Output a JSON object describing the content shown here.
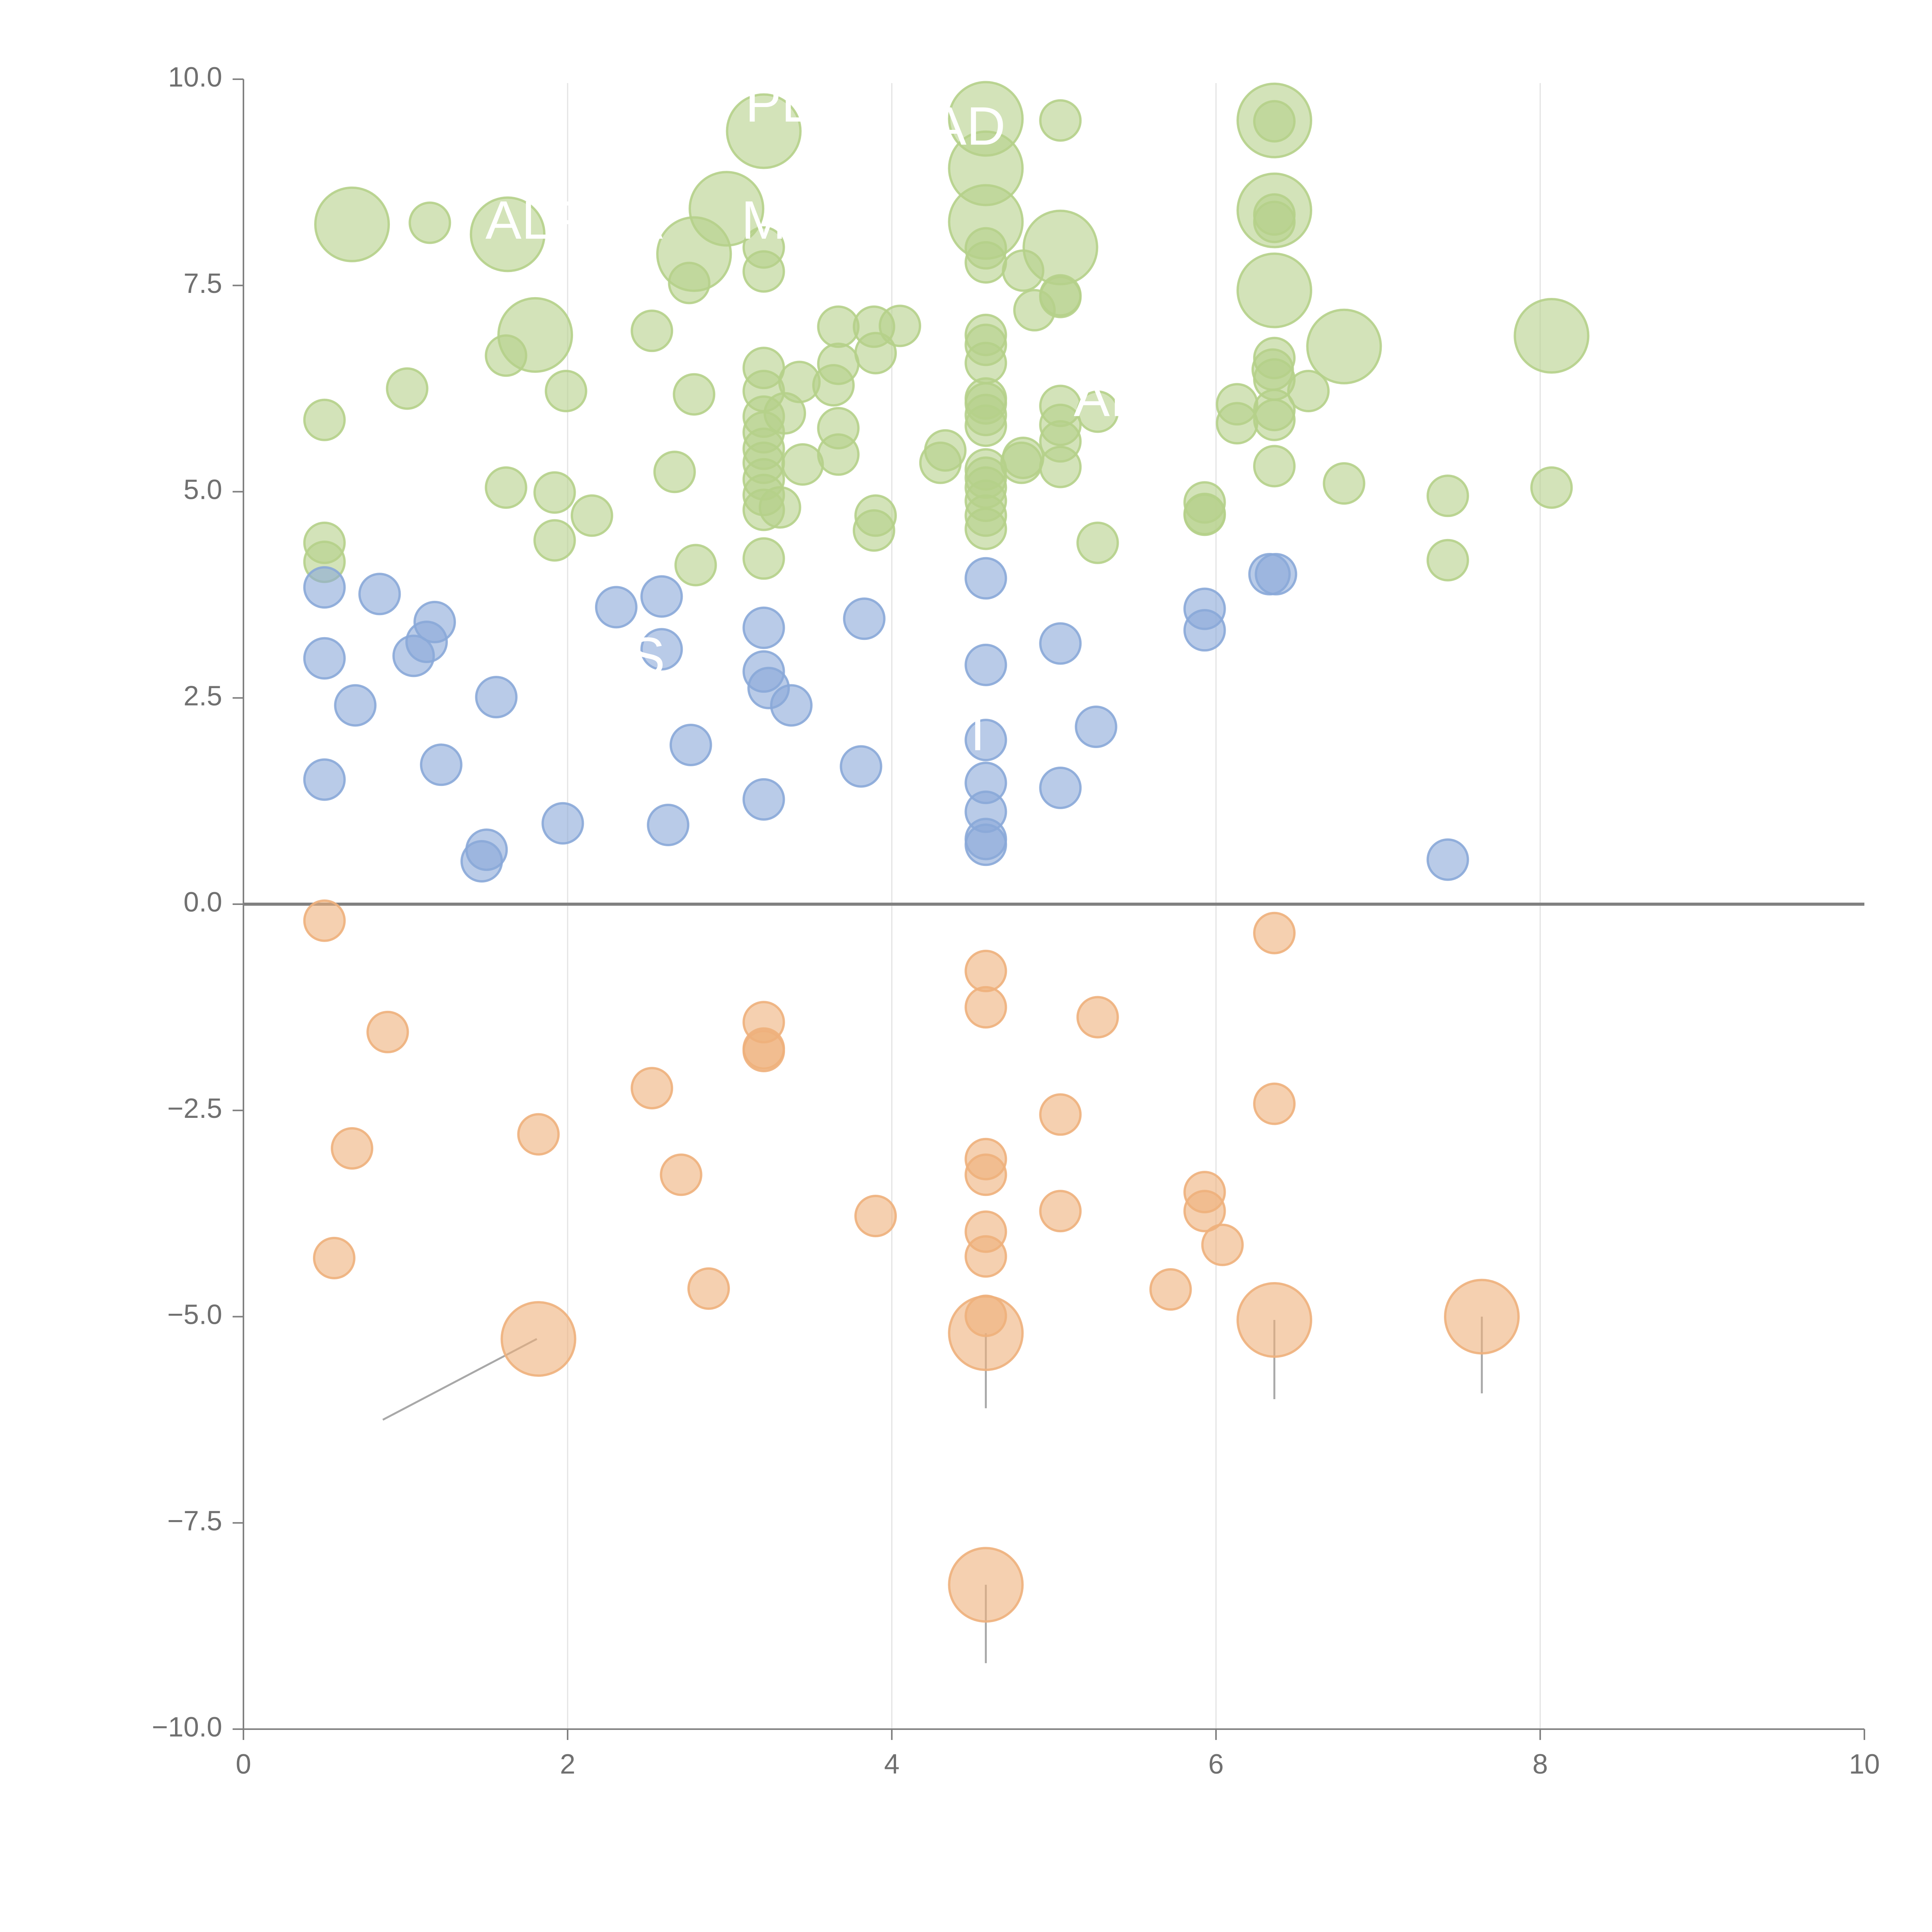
{
  "chart_data": {
    "type": "scatter",
    "title": "",
    "xlabel": "",
    "ylabel": "",
    "xlim": [
      0,
      10
    ],
    "ylim": [
      -10,
      10
    ],
    "grid": "vertical",
    "zero_line": true,
    "colors": {
      "green": "#b5d08a",
      "blue": "#8aa9d8",
      "orange": "#eeb07c",
      "axis": "#808080",
      "grid": "#e3e3e3",
      "leader": "#a8a8a8"
    },
    "xticks": [
      {
        "value": 0,
        "label": "0"
      },
      {
        "value": 2,
        "label": "2"
      },
      {
        "value": 4,
        "label": "4"
      },
      {
        "value": 6,
        "label": "6"
      },
      {
        "value": 8,
        "label": "8"
      },
      {
        "value": 10,
        "label": "10"
      }
    ],
    "yticks": [
      {
        "value": 10,
        "label": "10.0"
      },
      {
        "value": 7.5,
        "label": "7.5"
      },
      {
        "value": 5,
        "label": "5.0"
      },
      {
        "value": 2.5,
        "label": "2.5"
      },
      {
        "value": 0,
        "label": "0.0"
      },
      {
        "value": -2.5,
        "label": "−2.5"
      },
      {
        "value": -5,
        "label": "−5.0"
      },
      {
        "value": -7.5,
        "label": "−7.5"
      },
      {
        "value": -10,
        "label": "−10.0"
      }
    ],
    "series": [
      {
        "name": "green",
        "color": "green",
        "points": [
          [
            0.5,
            5.87,
            1
          ],
          [
            0.5,
            4.38,
            1
          ],
          [
            0.5,
            4.15,
            1
          ],
          [
            0.67,
            8.24,
            2.1
          ],
          [
            1.01,
            6.25,
            1
          ],
          [
            1.15,
            8.26,
            1
          ],
          [
            1.63,
            8.12,
            2.1
          ],
          [
            1.62,
            6.65,
            1
          ],
          [
            1.62,
            5.05,
            1
          ],
          [
            1.8,
            6.9,
            2.1
          ],
          [
            1.92,
            4.99,
            1
          ],
          [
            1.92,
            4.41,
            1
          ],
          [
            1.99,
            6.22,
            1
          ],
          [
            2.15,
            4.71,
            1
          ],
          [
            2.52,
            6.95,
            1
          ],
          [
            2.66,
            5.24,
            1
          ],
          [
            2.75,
            7.53,
            1
          ],
          [
            2.78,
            6.18,
            1
          ],
          [
            2.79,
            4.11,
            1
          ],
          [
            2.78,
            7.88,
            2.1
          ],
          [
            2.98,
            8.43,
            2.1
          ],
          [
            3.21,
            9.37,
            2.1
          ],
          [
            3.21,
            7.96,
            1
          ],
          [
            3.21,
            7.67,
            1
          ],
          [
            3.21,
            6.5,
            1
          ],
          [
            3.21,
            6.22,
            1
          ],
          [
            3.21,
            5.91,
            1
          ],
          [
            3.21,
            5.72,
            1
          ],
          [
            3.21,
            5.52,
            1
          ],
          [
            3.21,
            5.35,
            1
          ],
          [
            3.21,
            5.15,
            1
          ],
          [
            3.21,
            4.96,
            1
          ],
          [
            3.21,
            4.78,
            1
          ],
          [
            3.21,
            4.19,
            1
          ],
          [
            3.31,
            4.81,
            1
          ],
          [
            3.34,
            5.95,
            1
          ],
          [
            3.43,
            6.33,
            1
          ],
          [
            3.45,
            5.33,
            1
          ],
          [
            3.64,
            6.29,
            1
          ],
          [
            3.67,
            7.0,
            1
          ],
          [
            3.67,
            6.55,
            1
          ],
          [
            3.67,
            5.77,
            1
          ],
          [
            3.67,
            5.45,
            1
          ],
          [
            3.89,
            7.0,
            1
          ],
          [
            3.9,
            6.68,
            1
          ],
          [
            3.9,
            4.71,
            1
          ],
          [
            3.89,
            4.53,
            1
          ],
          [
            4.05,
            7.01,
            1
          ],
          [
            4.3,
            5.35,
            1
          ],
          [
            4.33,
            5.5,
            1
          ],
          [
            4.58,
            9.52,
            2.1
          ],
          [
            4.58,
            8.92,
            2.1
          ],
          [
            4.58,
            8.27,
            2.1
          ],
          [
            4.58,
            7.95,
            1
          ],
          [
            4.58,
            7.78,
            1
          ],
          [
            4.58,
            6.9,
            1
          ],
          [
            4.58,
            6.78,
            1
          ],
          [
            4.58,
            6.56,
            1
          ],
          [
            4.58,
            6.13,
            1
          ],
          [
            4.58,
            6.07,
            1
          ],
          [
            4.58,
            5.93,
            1
          ],
          [
            4.58,
            5.8,
            1
          ],
          [
            4.58,
            5.27,
            1
          ],
          [
            4.58,
            5.17,
            1
          ],
          [
            4.58,
            5.05,
            1
          ],
          [
            4.58,
            4.89,
            1
          ],
          [
            4.58,
            4.71,
            1
          ],
          [
            4.58,
            4.55,
            1
          ],
          [
            4.81,
            7.68,
            1
          ],
          [
            4.81,
            5.41,
            1
          ],
          [
            4.8,
            5.35,
            1
          ],
          [
            4.88,
            7.2,
            1
          ],
          [
            5.04,
            9.5,
            1
          ],
          [
            5.04,
            7.96,
            2.1
          ],
          [
            5.04,
            7.36,
            1
          ],
          [
            5.04,
            7.38,
            1
          ],
          [
            5.04,
            6.04,
            1
          ],
          [
            5.04,
            5.81,
            1
          ],
          [
            5.04,
            5.61,
            1
          ],
          [
            5.04,
            5.3,
            1
          ],
          [
            5.27,
            5.97,
            1
          ],
          [
            5.27,
            4.38,
            1
          ],
          [
            5.93,
            4.87,
            1
          ],
          [
            5.93,
            4.73,
            1
          ],
          [
            5.93,
            4.72,
            1
          ],
          [
            6.13,
            6.06,
            1
          ],
          [
            6.13,
            5.83,
            1
          ],
          [
            6.35,
            6.48,
            1
          ],
          [
            6.36,
            9.5,
            2.1
          ],
          [
            6.36,
            9.49,
            1
          ],
          [
            6.36,
            8.41,
            2.1
          ],
          [
            6.36,
            8.36,
            1
          ],
          [
            6.36,
            8.27,
            1
          ],
          [
            6.36,
            7.44,
            2.1
          ],
          [
            6.36,
            6.62,
            1
          ],
          [
            6.36,
            6.36,
            1
          ],
          [
            6.36,
            5.99,
            1
          ],
          [
            6.36,
            5.87,
            1
          ],
          [
            6.36,
            5.31,
            1
          ],
          [
            6.57,
            6.22,
            1
          ],
          [
            6.79,
            6.76,
            2.1
          ],
          [
            6.79,
            5.1,
            1
          ],
          [
            7.43,
            4.95,
            1
          ],
          [
            7.43,
            4.17,
            1
          ],
          [
            8.07,
            6.89,
            2.1
          ],
          [
            8.07,
            5.05,
            1
          ]
        ]
      },
      {
        "name": "blue",
        "color": "blue",
        "points": [
          [
            0.5,
            3.84,
            1
          ],
          [
            0.5,
            2.98,
            1
          ],
          [
            0.5,
            1.51,
            1
          ],
          [
            0.69,
            2.41,
            1
          ],
          [
            0.84,
            3.76,
            1
          ],
          [
            1.05,
            3.01,
            1
          ],
          [
            1.13,
            3.18,
            1
          ],
          [
            1.18,
            3.42,
            1
          ],
          [
            1.22,
            1.69,
            1
          ],
          [
            1.47,
            0.52,
            1
          ],
          [
            1.5,
            0.66,
            1
          ],
          [
            1.56,
            2.51,
            1
          ],
          [
            1.97,
            0.98,
            1
          ],
          [
            2.3,
            3.6,
            1
          ],
          [
            2.58,
            3.73,
            1
          ],
          [
            2.58,
            3.09,
            1
          ],
          [
            2.62,
            0.96,
            1
          ],
          [
            2.76,
            1.93,
            1
          ],
          [
            3.21,
            3.35,
            1
          ],
          [
            3.21,
            2.82,
            1
          ],
          [
            3.21,
            1.27,
            1
          ],
          [
            3.24,
            2.62,
            1
          ],
          [
            3.38,
            2.41,
            1
          ],
          [
            3.81,
            1.67,
            1
          ],
          [
            3.83,
            3.46,
            1
          ],
          [
            4.58,
            3.95,
            1
          ],
          [
            4.58,
            2.9,
            1
          ],
          [
            4.58,
            1.99,
            1
          ],
          [
            4.58,
            1.47,
            1
          ],
          [
            4.58,
            1.12,
            1
          ],
          [
            4.58,
            0.79,
            1
          ],
          [
            4.58,
            0.72,
            1
          ],
          [
            5.04,
            3.16,
            1
          ],
          [
            5.04,
            1.41,
            1
          ],
          [
            5.26,
            2.15,
            1
          ],
          [
            5.93,
            3.58,
            1
          ],
          [
            5.93,
            3.32,
            1
          ],
          [
            6.33,
            4.0,
            1
          ],
          [
            6.37,
            4.0,
            1
          ],
          [
            7.43,
            0.54,
            1
          ]
        ]
      },
      {
        "name": "orange",
        "color": "orange",
        "points": [
          [
            0.5,
            -0.2,
            1
          ],
          [
            0.56,
            -4.29,
            1
          ],
          [
            0.67,
            -2.96,
            1
          ],
          [
            0.89,
            -1.55,
            1
          ],
          [
            1.82,
            -2.79,
            1
          ],
          [
            1.82,
            -5.27,
            2.1
          ],
          [
            2.52,
            -2.23,
            1
          ],
          [
            2.7,
            -3.28,
            1
          ],
          [
            2.87,
            -4.66,
            1
          ],
          [
            3.21,
            -1.43,
            1
          ],
          [
            3.21,
            -1.75,
            1
          ],
          [
            3.21,
            -1.78,
            1
          ],
          [
            3.9,
            -3.78,
            1
          ],
          [
            4.58,
            -0.81,
            1
          ],
          [
            4.58,
            -1.25,
            1
          ],
          [
            4.58,
            -3.09,
            1
          ],
          [
            4.58,
            -3.28,
            1
          ],
          [
            4.58,
            -3.97,
            1
          ],
          [
            4.58,
            -4.27,
            1
          ],
          [
            4.58,
            -4.99,
            1
          ],
          [
            4.58,
            -5.2,
            2.1
          ],
          [
            4.58,
            -8.25,
            2.1
          ],
          [
            5.04,
            -2.55,
            1
          ],
          [
            5.04,
            -3.72,
            1
          ],
          [
            5.27,
            -1.37,
            1
          ],
          [
            5.72,
            -4.67,
            1
          ],
          [
            5.93,
            -3.49,
            1
          ],
          [
            5.93,
            -3.72,
            1
          ],
          [
            6.04,
            -4.13,
            1
          ],
          [
            6.36,
            -0.35,
            1
          ],
          [
            6.36,
            -2.42,
            1
          ],
          [
            6.36,
            -5.04,
            2.1
          ],
          [
            7.64,
            -5.0,
            2.1
          ]
        ]
      }
    ],
    "labels": [
      {
        "text": "ALPHA",
        "x": 2.04,
        "y": 8.24
      },
      {
        "text": "PL",
        "x": 3.3,
        "y": 9.66
      },
      {
        "text": "AD",
        "x": 4.47,
        "y": 9.38
      },
      {
        "text": "M",
        "x": 3.21,
        "y": 8.24
      },
      {
        "text": "AI",
        "x": 5.28,
        "y": 6.09
      },
      {
        "text": "S",
        "x": 2.49,
        "y": 2.95
      },
      {
        "text": "T",
        "x": 4.53,
        "y": 2.04
      }
    ],
    "leaders": [
      [
        0.86,
        -6.25,
        1.81,
        -5.27
      ],
      [
        4.58,
        -6.11,
        4.58,
        -5.2
      ],
      [
        4.58,
        -9.2,
        4.58,
        -8.25
      ],
      [
        6.36,
        -6.0,
        6.36,
        -5.04
      ],
      [
        7.64,
        -5.93,
        7.64,
        -5.0
      ],
      [
        0.67,
        7.7,
        0.67,
        8.24
      ],
      [
        1.77,
        6.54,
        1.8,
        6.9
      ],
      [
        8.07,
        6.54,
        8.07,
        6.89
      ],
      [
        6.79,
        6.38,
        6.79,
        6.76
      ],
      [
        6.36,
        7.38,
        6.36,
        7.44
      ],
      [
        6.39,
        7.88,
        6.36,
        8.41
      ],
      [
        6.36,
        9.5,
        6.57,
        9.53
      ],
      [
        5.04,
        7.58,
        5.04,
        7.96
      ],
      [
        2.78,
        7.86,
        2.78,
        7.88
      ],
      [
        3.2,
        9.38,
        3.21,
        9.37
      ]
    ]
  }
}
